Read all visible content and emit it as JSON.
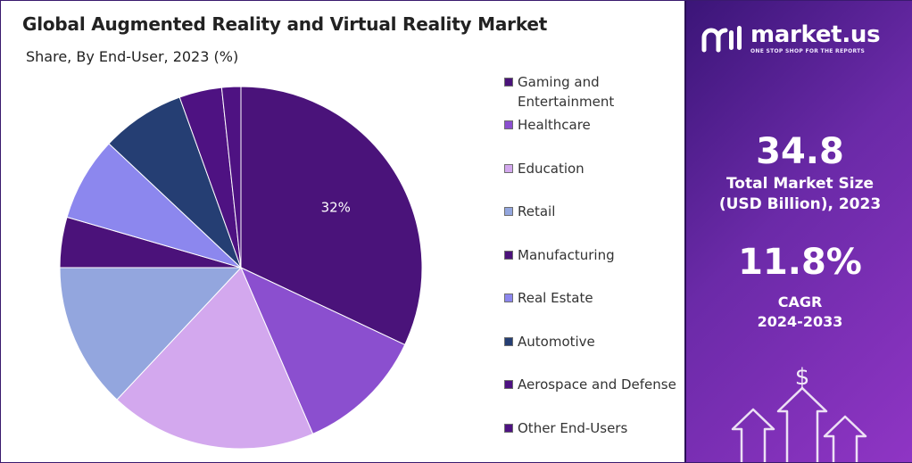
{
  "chart_data": {
    "type": "pie",
    "title": "Global Augmented Reality and Virtual Reality Market",
    "subtitle": "Share, By End-User, 2023 (%)",
    "categories": [
      "Gaming and Entertainment",
      "Healthcare",
      "Education",
      "Retail",
      "Manufacturing",
      "Real Estate",
      "Automotive",
      "Aerospace and Defense",
      "Other End-Users"
    ],
    "values": [
      32,
      11.5,
      18.5,
      13,
      4.5,
      7.5,
      7.5,
      3.8,
      1.7
    ],
    "colors": [
      "#4a137a",
      "#8b4fcf",
      "#d3a8ee",
      "#93a6de",
      "#4b127a",
      "#8c87ee",
      "#253e73",
      "#4e1282",
      "#4e1282"
    ],
    "data_labels": [
      "32%",
      "",
      "",
      "",
      "",
      "",
      "",
      "",
      ""
    ],
    "legend_position": "right"
  },
  "legend_colors": [
    "#4a137a",
    "#8b4fcf",
    "#d3a8ee",
    "#93a6de",
    "#4b127a",
    "#8c87ee",
    "#253e73",
    "#4e1282",
    "#4e1282"
  ],
  "legend": {
    "items": [
      "Gaming and",
      "Healthcare",
      "Education",
      "Retail",
      "Manufacturing",
      "Real Estate",
      "Automotive",
      "Aerospace and Defense",
      "Other End-Users"
    ],
    "item0_line2": "Entertainment"
  },
  "brand": {
    "name": "market.us",
    "tagline": "ONE STOP SHOP FOR THE REPORTS"
  },
  "stats": {
    "market_size_value": "34.8",
    "market_size_label_1": "Total Market Size",
    "market_size_label_2": "(USD Billion), 2023",
    "cagr_value": "11.8%",
    "cagr_label_1": "CAGR",
    "cagr_label_2": "2024-2033"
  },
  "decor_icon": "dollar-arrows-icon",
  "accent_colors": {
    "panel_start": "#3b1578",
    "panel_end": "#8f35c4"
  }
}
